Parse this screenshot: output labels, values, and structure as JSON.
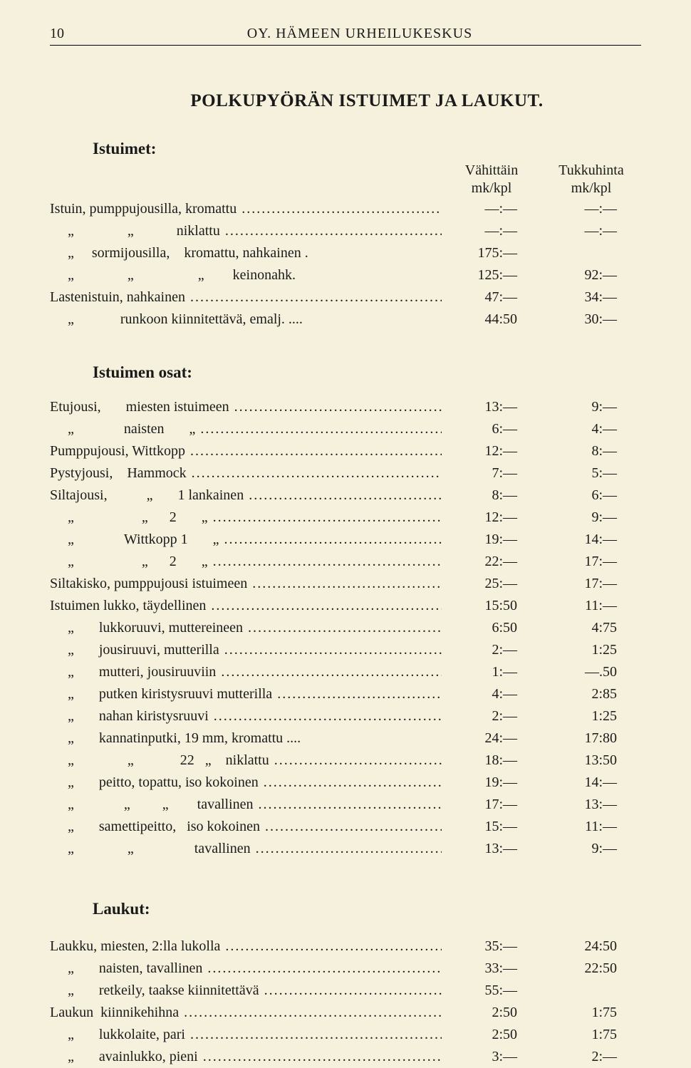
{
  "page_number": "10",
  "header": "OY. HÄMEEN URHEILUKESKUS",
  "title": "POLKUPYÖRÄN ISTUIMET JA LAUKUT.",
  "col_header_1a": "Vähittäin",
  "col_header_1b": "mk/kpl",
  "col_header_2a": "Tukkuhinta",
  "col_header_2b": "mk/kpl",
  "sections": {
    "istuimet": {
      "heading": "Istuimet:",
      "rows": [
        {
          "desc": "Istuin, pumppujousilla, kromattu",
          "p1": "—:—",
          "p2": "—:—",
          "dots": true
        },
        {
          "desc": "     „               „            niklattu",
          "p1": "—:—",
          "p2": "—:—",
          "dots": true
        },
        {
          "desc": "     „     sormijousilla,    kromattu, nahkainen .",
          "p1": "175:—",
          "p2": "",
          "dots": false
        },
        {
          "desc": "     „               „                  „        keinonahk.",
          "p1": "125:—",
          "p2": "92:—",
          "dots": false
        },
        {
          "desc": "Lastenistuin, nahkainen",
          "p1": "47:—",
          "p2": "34:—",
          "dots": true
        },
        {
          "desc": "     „             runkoon kiinnitettävä, emalj. ....",
          "p1": "44:50",
          "p2": "30:—",
          "dots": false
        }
      ]
    },
    "istuimen_osat": {
      "heading": "Istuimen osat:",
      "rows": [
        {
          "desc": "Etujousi,       miesten istuimeen",
          "p1": "13:—",
          "p2": "9:—",
          "dots": true
        },
        {
          "desc": "     „              naisten       „",
          "p1": "6:—",
          "p2": "4:—",
          "dots": true
        },
        {
          "desc": "Pumppujousi, Wittkopp",
          "p1": "12:—",
          "p2": "8:—",
          "dots": true
        },
        {
          "desc": "Pystyjousi,    Hammock",
          "p1": "7:—",
          "p2": "5:—",
          "dots": true
        },
        {
          "desc": "Siltajousi,           „       1 lankainen",
          "p1": "8:—",
          "p2": "6:—",
          "dots": true
        },
        {
          "desc": "     „                   „      2       „",
          "p1": "12:—",
          "p2": "9:—",
          "dots": true
        },
        {
          "desc": "     „              Wittkopp 1       „",
          "p1": "19:—",
          "p2": "14:—",
          "dots": true
        },
        {
          "desc": "     „                   „      2       „",
          "p1": "22:—",
          "p2": "17:—",
          "dots": true
        },
        {
          "desc": "Siltakisko, pumppujousi istuimeen",
          "p1": "25:—",
          "p2": "17:—",
          "dots": true
        },
        {
          "desc": "Istuimen lukko, täydellinen",
          "p1": "15:50",
          "p2": "11:—",
          "dots": true
        },
        {
          "desc": "     „       lukkoruuvi, muttereineen",
          "p1": "6:50",
          "p2": "4:75",
          "dots": true
        },
        {
          "desc": "     „       jousiruuvi, mutterilla",
          "p1": "2:—",
          "p2": "1:25",
          "dots": true
        },
        {
          "desc": "     „       mutteri, jousiruuviin",
          "p1": "1:—",
          "p2": "—.50",
          "dots": true
        },
        {
          "desc": "     „       putken kiristysruuvi mutterilla",
          "p1": "4:—",
          "p2": "2:85",
          "dots": true
        },
        {
          "desc": "     „       nahan kiristysruuvi",
          "p1": "2:—",
          "p2": "1:25",
          "dots": true
        },
        {
          "desc": "     „       kannatinputki, 19 mm, kromattu ....",
          "p1": "24:—",
          "p2": "17:80",
          "dots": false
        },
        {
          "desc": "     „               „             22   „    niklattu",
          "p1": "18:—",
          "p2": "13:50",
          "dots": true
        },
        {
          "desc": "     „       peitto, topattu, iso kokoinen",
          "p1": "19:—",
          "p2": "14:—",
          "dots": true
        },
        {
          "desc": "     „              „         „        tavallinen",
          "p1": "17:—",
          "p2": "13:—",
          "dots": true
        },
        {
          "desc": "     „       samettipeitto,   iso kokoinen",
          "p1": "15:—",
          "p2": "11:—",
          "dots": true
        },
        {
          "desc": "     „               „                 tavallinen",
          "p1": "13:—",
          "p2": "9:—",
          "dots": true
        }
      ]
    },
    "laukut": {
      "heading": "Laukut:",
      "rows": [
        {
          "desc": "Laukku, miesten, 2:lla lukolla",
          "p1": "35:—",
          "p2": "24:50",
          "dots": true
        },
        {
          "desc": "     „       naisten, tavallinen",
          "p1": "33:—",
          "p2": "22:50",
          "dots": true
        },
        {
          "desc": "     „       retkeily, taakse kiinnitettävä",
          "p1": "55:—",
          "p2": "",
          "dots": true
        },
        {
          "desc": "Laukun  kiinnikehihna",
          "p1": "2:50",
          "p2": "1:75",
          "dots": true
        },
        {
          "desc": "     „       lukkolaite, pari",
          "p1": "2:50",
          "p2": "1:75",
          "dots": true
        },
        {
          "desc": "     „       avainlukko, pieni",
          "p1": "3:—",
          "p2": "2:—",
          "dots": true
        }
      ]
    }
  }
}
